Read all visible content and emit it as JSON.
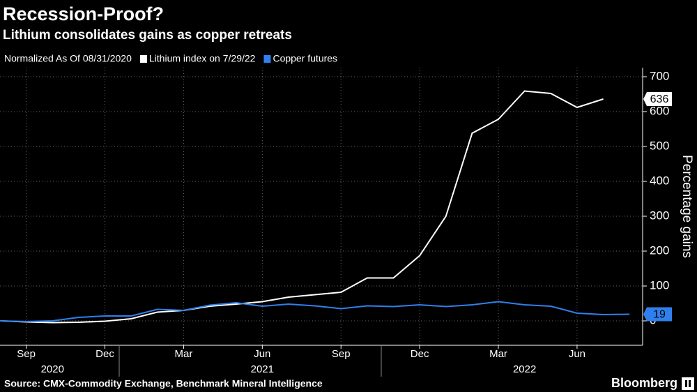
{
  "chart_data": {
    "type": "line",
    "title": "Recession-Proof?",
    "subtitle": "Lithium consolidates gains as copper retreats",
    "note": "Normalized As Of 08/31/2020",
    "x": [
      0,
      1,
      2,
      3,
      4,
      5,
      6,
      7,
      8,
      9,
      10,
      11,
      12,
      13,
      14,
      15,
      16,
      17,
      18,
      19,
      20,
      21,
      22,
      23,
      24
    ],
    "series": [
      {
        "name": "Lithium index on 7/29/22",
        "color": "#ffffff",
        "values": [
          0,
          -3,
          -5,
          -4,
          -1,
          6,
          25,
          30,
          42,
          48,
          55,
          68,
          75,
          82,
          123,
          123,
          187,
          300,
          538,
          578,
          659,
          652,
          612,
          636,
          null
        ]
      },
      {
        "name": "Copper futures",
        "color": "#2f80ed",
        "values": [
          0,
          -2,
          0,
          10,
          14,
          14,
          33,
          30,
          45,
          52,
          42,
          48,
          43,
          35,
          43,
          41,
          46,
          41,
          46,
          55,
          46,
          42,
          22,
          18,
          19
        ]
      }
    ],
    "xlim": [
      0,
      24.5
    ],
    "xticks": [
      {
        "value": 1,
        "label": "Sep"
      },
      {
        "value": 4,
        "label": "Dec"
      },
      {
        "value": 7,
        "label": "Mar"
      },
      {
        "value": 10,
        "label": "Jun"
      },
      {
        "value": 13,
        "label": "Sep"
      },
      {
        "value": 16,
        "label": "Dec"
      },
      {
        "value": 19,
        "label": "Mar"
      },
      {
        "value": 22,
        "label": "Jun"
      }
    ],
    "year_labels": [
      {
        "value": 2,
        "label": "2020"
      },
      {
        "value": 10,
        "label": "2021"
      },
      {
        "value": 20,
        "label": "2022"
      }
    ],
    "ylim": [
      -70,
      726
    ],
    "yticks": [
      0,
      100,
      200,
      300,
      400,
      500,
      600,
      700
    ],
    "y_axis_label": "Percentage gains",
    "grid": true,
    "source": "Source: CMX-Commodity Exchange, Benchmark Mineral Intelligence",
    "brand": "Bloomberg"
  }
}
